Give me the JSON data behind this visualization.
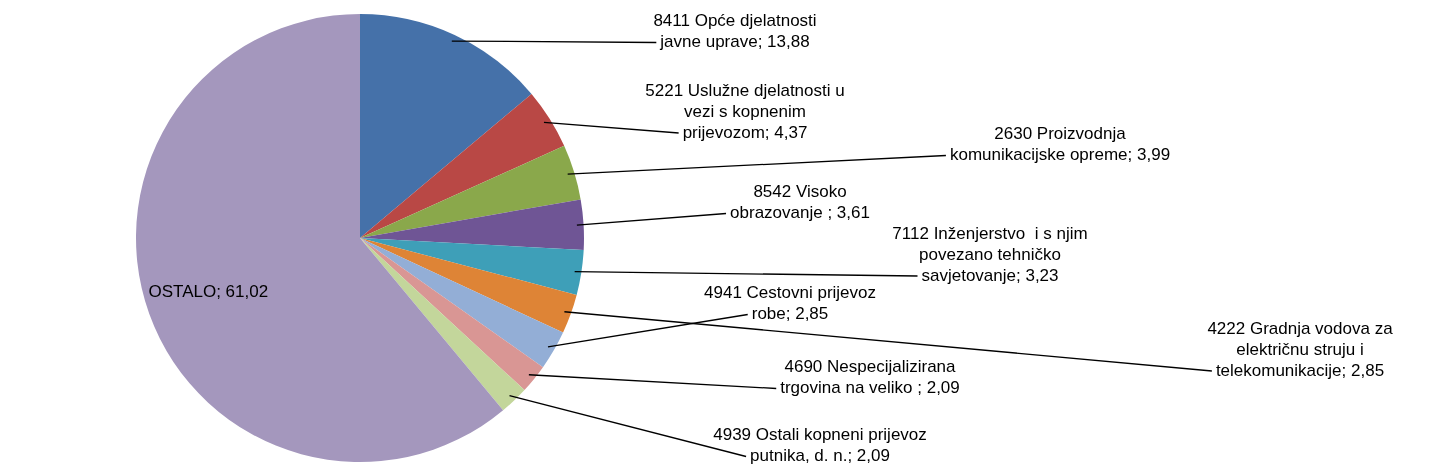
{
  "chart_data": {
    "type": "pie",
    "categories": [
      "8411 Opće djelatnosti javne uprave",
      "5221 Uslužne djelatnosti u vezi s kopnenim prijevozom",
      "2630 Proizvodnja komunikacijske opreme",
      "8542 Visoko obrazovanje ",
      "7112 Inženjerstvo  i s njim povezano tehničko savjetovanje",
      "4222 Gradnja vodova za električnu struju i telekomunikacije",
      "4941 Cestovni prijevoz robe",
      "4690 Nespecijalizirana trgovina na veliko ",
      "4939 Ostali kopneni prijevoz putnika, d. n.",
      "OSTALO"
    ],
    "values": [
      13.88,
      4.37,
      3.99,
      3.61,
      3.23,
      2.85,
      2.85,
      2.09,
      2.09,
      61.02
    ],
    "value_labels": [
      "13,88",
      "4,37",
      "3,99",
      "3,61",
      "3,23",
      "2,85",
      "2,85",
      "2,09",
      "2,09",
      "61,02"
    ],
    "colors": [
      "#4571a9",
      "#b94845",
      "#8aa84b",
      "#6f5595",
      "#3e9fb8",
      "#de8436",
      "#93aed6",
      "#d99694",
      "#c3d69b",
      "#a497bd"
    ],
    "legend": false
  }
}
